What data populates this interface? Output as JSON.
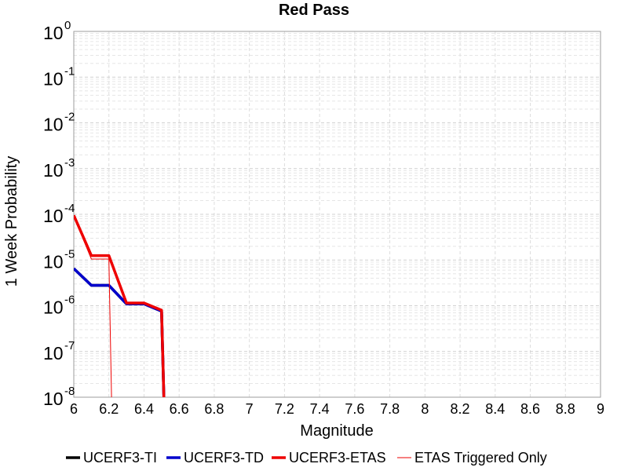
{
  "chart_data": {
    "type": "line",
    "title": "Red Pass",
    "xlabel": "Magnitude",
    "ylabel": "1 Week Probability",
    "xlim": [
      6,
      9
    ],
    "ylim": [
      1e-08,
      1
    ],
    "yscale": "log",
    "grid": true,
    "legend_position": "bottom",
    "x_ticks": [
      "6",
      "6.2",
      "6.4",
      "6.6",
      "6.8",
      "7",
      "7.2",
      "7.4",
      "7.6",
      "7.8",
      "8",
      "8.2",
      "8.4",
      "8.6",
      "8.8",
      "9"
    ],
    "y_ticks": [
      {
        "base": "10",
        "exp": "0"
      },
      {
        "base": "10",
        "exp": "-1"
      },
      {
        "base": "10",
        "exp": "-2"
      },
      {
        "base": "10",
        "exp": "-3"
      },
      {
        "base": "10",
        "exp": "-4"
      },
      {
        "base": "10",
        "exp": "-5"
      },
      {
        "base": "10",
        "exp": "-6"
      },
      {
        "base": "10",
        "exp": "-7"
      },
      {
        "base": "10",
        "exp": "-8"
      }
    ],
    "series": [
      {
        "name": "UCERF3-TI",
        "color": "#000000",
        "width": 3.5,
        "x": [
          6.0,
          6.1,
          6.2,
          6.3,
          6.4,
          6.5,
          6.52
        ],
        "y": [
          6.5e-06,
          2.8e-06,
          2.8e-06,
          1.1e-06,
          1.1e-06,
          7.6e-07,
          1e-09
        ]
      },
      {
        "name": "UCERF3-TD",
        "color": "#0000cc",
        "width": 3.5,
        "x": [
          6.0,
          6.1,
          6.2,
          6.3,
          6.4,
          6.5,
          6.52
        ],
        "y": [
          6.5e-06,
          2.8e-06,
          2.8e-06,
          1.1e-06,
          1.1e-06,
          7.6e-07,
          1e-09
        ]
      },
      {
        "name": "UCERF3-ETAS",
        "color": "#ee0000",
        "width": 3.5,
        "x": [
          6.0,
          6.1,
          6.2,
          6.3,
          6.4,
          6.5,
          6.52
        ],
        "y": [
          9.5e-05,
          1.25e-05,
          1.25e-05,
          1.15e-06,
          1.15e-06,
          8e-07,
          1e-09
        ]
      },
      {
        "name": "ETAS Triggered Only",
        "color": "#ee0000",
        "width": 1,
        "x": [
          6.0,
          6.1,
          6.2,
          6.22
        ],
        "y": [
          9e-05,
          1.05e-05,
          1.05e-05,
          1e-09
        ]
      }
    ]
  }
}
